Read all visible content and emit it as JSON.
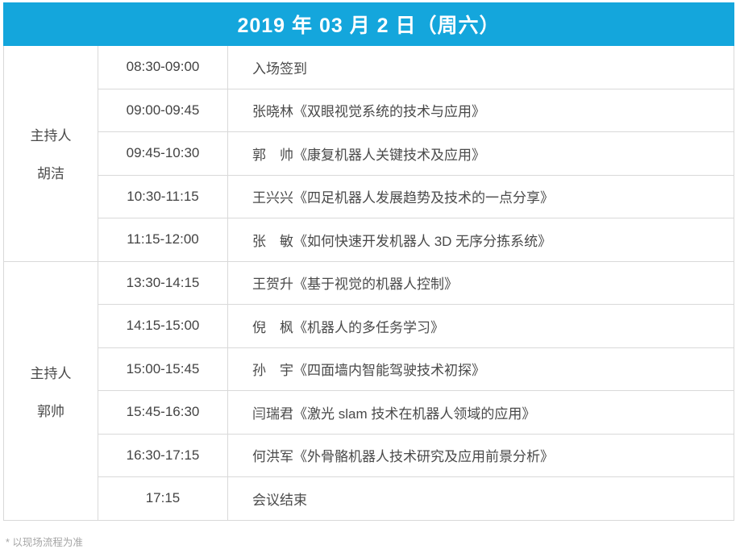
{
  "header": {
    "title": "2019 年 03 月 2 日（周六）"
  },
  "colors": {
    "header_bg": "#14a6dc",
    "header_text": "#ffffff",
    "border": "#d9d9d9",
    "body_text": "#4a4a4a",
    "footer_text": "#a6a6a6"
  },
  "sections": [
    {
      "host_role": "主持人",
      "host_name": "胡洁",
      "rows": [
        {
          "time": "08:30-09:00",
          "topic": "入场签到"
        },
        {
          "time": "09:00-09:45",
          "topic": "张晓林《双眼视觉系统的技术与应用》"
        },
        {
          "time": "09:45-10:30",
          "topic": "郭　帅《康复机器人关键技术及应用》"
        },
        {
          "time": "10:30-11:15",
          "topic": "王兴兴《四足机器人发展趋势及技术的一点分享》"
        },
        {
          "time": "11:15-12:00",
          "topic": "张　敏《如何快速开发机器人 3D 无序分拣系统》"
        }
      ]
    },
    {
      "host_role": "主持人",
      "host_name": "郭帅",
      "rows": [
        {
          "time": "13:30-14:15",
          "topic": "王贺升《基于视觉的机器人控制》"
        },
        {
          "time": "14:15-15:00",
          "topic": "倪　枫《机器人的多任务学习》"
        },
        {
          "time": "15:00-15:45",
          "topic": "孙　宇《四面墙内智能驾驶技术初探》"
        },
        {
          "time": "15:45-16:30",
          "topic": "闫瑞君《激光 slam 技术在机器人领域的应用》"
        },
        {
          "time": "16:30-17:15",
          "topic": "何洪军《外骨骼机器人技术研究及应用前景分析》"
        },
        {
          "time": "17:15",
          "topic": "会议结束"
        }
      ]
    }
  ],
  "footer": {
    "note": "* 以现场流程为准"
  }
}
